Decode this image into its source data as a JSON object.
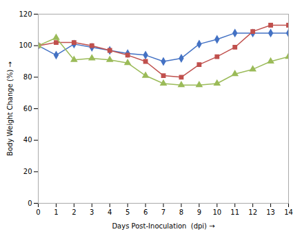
{
  "chart_data": {
    "type": "line",
    "x": [
      0,
      1,
      2,
      3,
      4,
      5,
      6,
      7,
      8,
      9,
      10,
      11,
      12,
      13,
      14
    ],
    "series": [
      {
        "color": "#4472C4",
        "marker": "diamond",
        "values": [
          100,
          94,
          101,
          99,
          97,
          95,
          94,
          90,
          92,
          101,
          104,
          108,
          108,
          108,
          108
        ]
      },
      {
        "color": "#C0504D",
        "marker": "square",
        "values": [
          100,
          102,
          102,
          100,
          97,
          94,
          90,
          81,
          80,
          88,
          93,
          99,
          109,
          113,
          113
        ]
      },
      {
        "color": "#9BBB59",
        "marker": "triangle",
        "values": [
          100,
          105,
          91,
          92,
          91,
          89,
          81,
          76,
          75,
          75,
          76,
          82,
          85,
          90,
          93
        ]
      }
    ],
    "xlabel": "Days Post-Inoculation  (dpi)",
    "ylabel": "Body Weight Change (%)",
    "xlim": [
      0,
      14
    ],
    "ylim": [
      0,
      120
    ],
    "xticks": [
      0,
      1,
      2,
      3,
      4,
      5,
      6,
      7,
      8,
      9,
      10,
      11,
      12,
      13,
      14
    ],
    "yticks": [
      0,
      20,
      40,
      60,
      80,
      100,
      120
    ],
    "grid": false
  }
}
